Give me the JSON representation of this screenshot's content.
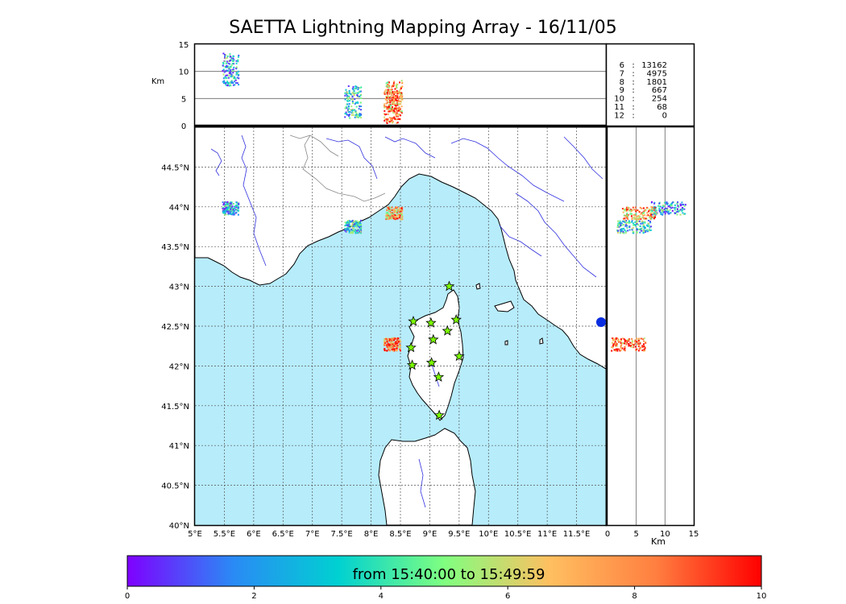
{
  "title": "SAETTA Lightning Mapping Array - 16/11/05",
  "top_panel": {
    "ylabel": "Km",
    "yticks": [
      "15",
      "10",
      "5",
      "0"
    ],
    "yvalues": [
      15,
      10,
      5,
      0
    ]
  },
  "right_panel": {
    "xlabel": "Km",
    "xticks": [
      "0",
      "5",
      "10",
      "15"
    ],
    "xvalues": [
      0,
      5,
      10,
      15
    ]
  },
  "counts": [
    {
      "label": "6",
      "value": "13162",
      "color": "#000000"
    },
    {
      "label": "7",
      "value": "4975",
      "color": "#e00000"
    },
    {
      "label": "8",
      "value": "1801",
      "color": "#000000"
    },
    {
      "label": "9",
      "value": "667",
      "color": "#000000"
    },
    {
      "label": "10",
      "value": "254",
      "color": "#000000"
    },
    {
      "label": "11",
      "value": "68",
      "color": "#000000"
    },
    {
      "label": "12",
      "value": "0",
      "color": "#000000"
    }
  ],
  "map": {
    "lon_min": 5.0,
    "lon_max": 12.0,
    "lat_min": 40.0,
    "lat_max": 45.0,
    "lon_ticks": [
      "5°E",
      "5.5°E",
      "6°E",
      "6.5°E",
      "7°E",
      "7.5°E",
      "8°E",
      "8.5°E",
      "9°E",
      "9.5°E",
      "10°E",
      "10.5°E",
      "11°E",
      "11.5°E"
    ],
    "lon_values": [
      5.0,
      5.5,
      6.0,
      6.5,
      7.0,
      7.5,
      8.0,
      8.5,
      9.0,
      9.5,
      10.0,
      10.5,
      11.0,
      11.5
    ],
    "lat_ticks": [
      "44.5°N",
      "44°N",
      "43.5°N",
      "43°N",
      "42.5°N",
      "42°N",
      "41.5°N",
      "41°N",
      "40.5°N",
      "40°N"
    ],
    "lat_values": [
      44.5,
      44.0,
      43.5,
      43.0,
      42.5,
      42.0,
      41.5,
      41.0,
      40.5,
      40.0
    ],
    "sea_color": "#b7ecfb",
    "land_color": "#ffffff",
    "river_color": "#3030e0",
    "stations": [
      [
        9.33,
        43.0
      ],
      [
        8.72,
        42.56
      ],
      [
        9.02,
        42.54
      ],
      [
        9.45,
        42.58
      ],
      [
        9.3,
        42.44
      ],
      [
        8.68,
        42.23
      ],
      [
        9.06,
        42.33
      ],
      [
        9.5,
        42.12
      ],
      [
        8.7,
        42.01
      ],
      [
        9.03,
        42.04
      ],
      [
        9.15,
        41.86
      ],
      [
        9.16,
        41.38
      ]
    ],
    "station_color": "#7cfc00",
    "lightning_clusters": [
      {
        "lon": 5.6,
        "lat": 43.99,
        "alt": 10.5,
        "t": 2.8
      },
      {
        "lon": 7.68,
        "lat": 43.76,
        "alt": 4.5,
        "t": 3.5
      },
      {
        "lon": 8.38,
        "lat": 43.93,
        "alt": 5.5,
        "t": 7.5
      },
      {
        "lon": 8.35,
        "lat": 42.28,
        "alt": 3.5,
        "t": 8.5
      }
    ]
  },
  "colorbar": {
    "label": "from 15:40:00 to 15:49:59",
    "ticks": [
      "0",
      "2",
      "4",
      "6",
      "8",
      "10"
    ],
    "tick_values": [
      0,
      2,
      4,
      6,
      8,
      10
    ],
    "range": [
      0,
      10
    ],
    "colors": [
      "#7f00ff",
      "#2a8af5",
      "#00d1d1",
      "#80ff80",
      "#ffbf60",
      "#ff7f40",
      "#ff0000"
    ]
  }
}
